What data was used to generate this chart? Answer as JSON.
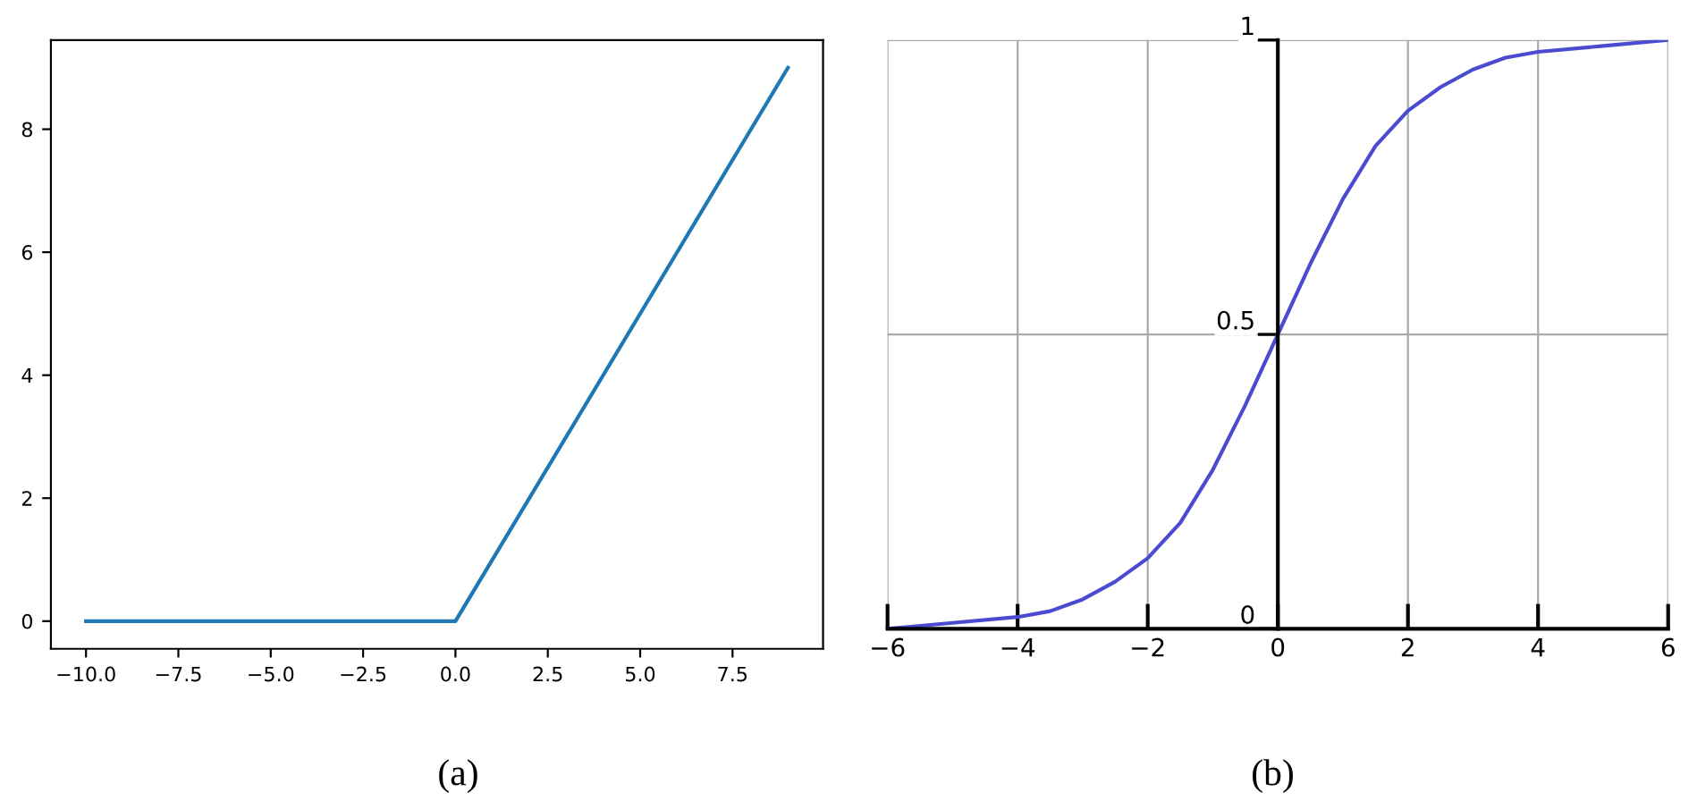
{
  "chart_data": [
    {
      "type": "line",
      "x": [
        -10,
        0,
        9
      ],
      "series": [
        {
          "color": "#1f77b4",
          "values": [
            0,
            0,
            9
          ]
        }
      ],
      "xlim": [
        -10.95,
        9.95
      ],
      "ylim": [
        -0.45,
        9.45
      ],
      "xticks": [
        {
          "value": -10,
          "label": "−10.0"
        },
        {
          "value": -7.5,
          "label": "−7.5"
        },
        {
          "value": -5,
          "label": "−5.0"
        },
        {
          "value": -2.5,
          "label": "−2.5"
        },
        {
          "value": 0,
          "label": "0.0"
        },
        {
          "value": 2.5,
          "label": "2.5"
        },
        {
          "value": 5,
          "label": "5.0"
        },
        {
          "value": 7.5,
          "label": "7.5"
        }
      ],
      "yticks": [
        0,
        2,
        4,
        6,
        8
      ],
      "grid": false,
      "annotations": [
        "(a)"
      ]
    },
    {
      "type": "line",
      "x": [
        -6,
        -5,
        -4,
        -3.5,
        -3,
        -2.5,
        -2,
        -1.5,
        -1,
        -0.5,
        0,
        0.5,
        1,
        1.5,
        2,
        2.5,
        3,
        3.5,
        4,
        5,
        6
      ],
      "series": [
        {
          "color": "#4b4bd2",
          "values": [
            0.0,
            0.01,
            0.02,
            0.03,
            0.05,
            0.08,
            0.12,
            0.18,
            0.27,
            0.38,
            0.5,
            0.62,
            0.73,
            0.82,
            0.88,
            0.92,
            0.95,
            0.97,
            0.98,
            0.99,
            1.0
          ]
        }
      ],
      "xlim": [
        -6,
        6
      ],
      "ylim": [
        0,
        1
      ],
      "xticks": [
        {
          "value": -6,
          "label": "−6"
        },
        {
          "value": -4,
          "label": "−4"
        },
        {
          "value": -2,
          "label": "−2"
        },
        0,
        2,
        4,
        6
      ],
      "yticks": [
        0,
        0.5,
        1
      ],
      "grid": true,
      "annotations": [
        "(b)"
      ]
    }
  ]
}
